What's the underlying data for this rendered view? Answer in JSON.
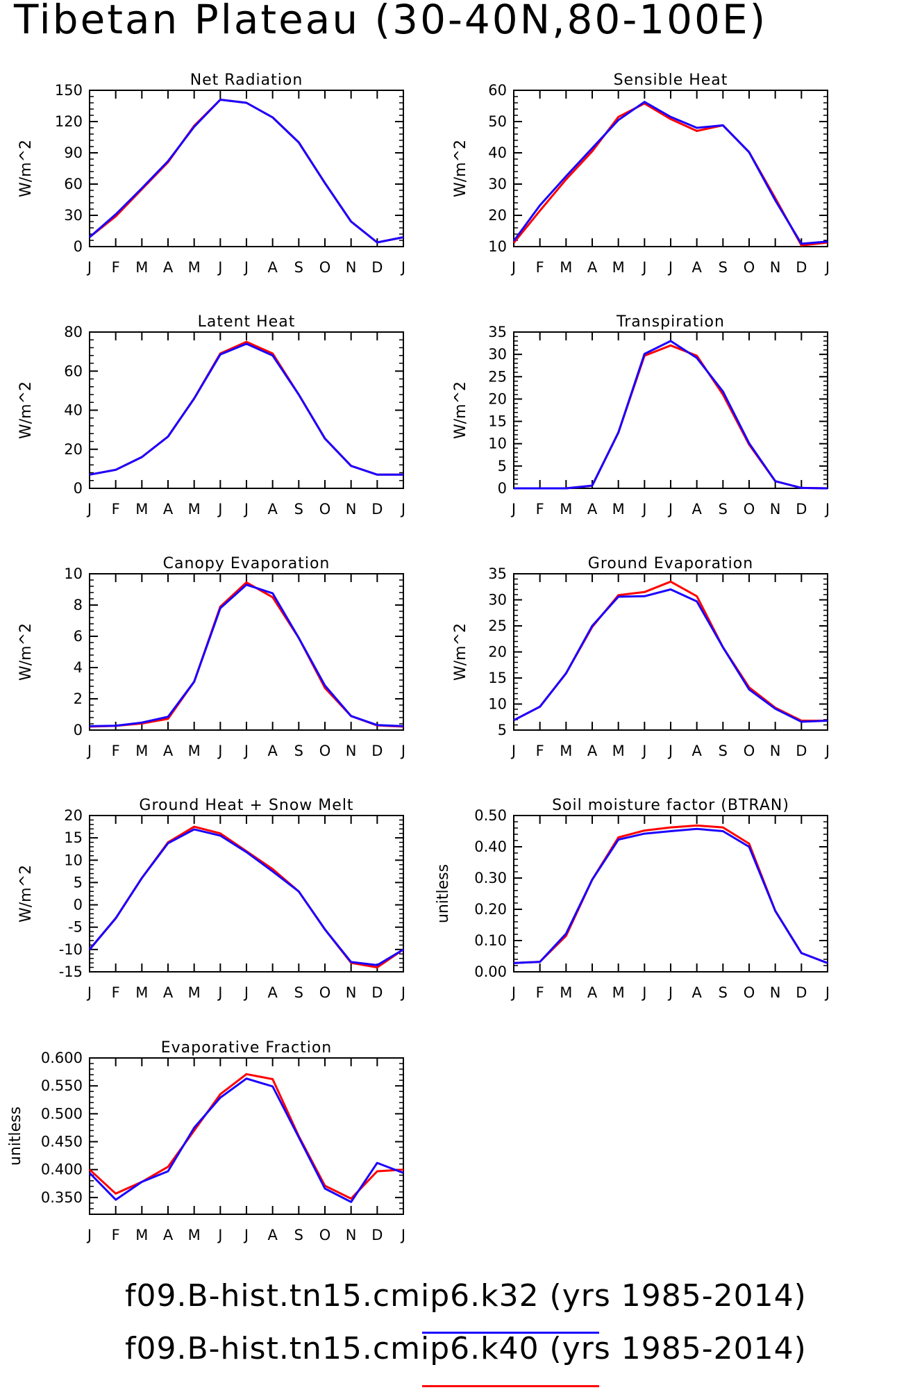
{
  "page_title": "Tibetan Plateau (30-40N,80-100E)",
  "colors": {
    "k32": "#1a00ff",
    "k40": "#ff0000",
    "axis": "#000000"
  },
  "legend": [
    {
      "text": "f09.B-hist.tn15.cmip6.k32 (yrs 1985-2014)",
      "color": "#1a00ff"
    },
    {
      "text": "f09.B-hist.tn15.cmip6.k40 (yrs 1985-2014)",
      "color": "#ff0000"
    }
  ],
  "chart_data": [
    {
      "type": "line",
      "title": "Net Radiation",
      "ylabel": "W/m^2",
      "ylim": [
        0,
        150
      ],
      "yticks": [
        0,
        30,
        60,
        90,
        120,
        150
      ],
      "ytick_labels": [
        "0",
        "30",
        "60",
        "90",
        "120",
        "150"
      ],
      "x": [
        "J",
        "F",
        "M",
        "A",
        "M",
        "J",
        "J",
        "A",
        "S",
        "O",
        "N",
        "D",
        "J"
      ],
      "series": [
        {
          "name": "f09.B-hist.tn15.cmip6.k40",
          "color": "#ff0000",
          "values": [
            9,
            29,
            55,
            81,
            116,
            141,
            138,
            124,
            100,
            61,
            24,
            4,
            9
          ]
        },
        {
          "name": "f09.B-hist.tn15.cmip6.k32",
          "color": "#1a00ff",
          "values": [
            9,
            31,
            56,
            82,
            115,
            141,
            138,
            124,
            100,
            61,
            24,
            4,
            9
          ]
        }
      ]
    },
    {
      "type": "line",
      "title": "Sensible Heat",
      "ylabel": "W/m^2",
      "ylim": [
        10,
        60
      ],
      "yticks": [
        10,
        20,
        30,
        40,
        50,
        60
      ],
      "ytick_labels": [
        "10",
        "20",
        "30",
        "40",
        "50",
        "60"
      ],
      "x": [
        "J",
        "F",
        "M",
        "A",
        "M",
        "J",
        "J",
        "A",
        "S",
        "O",
        "N",
        "D",
        "J"
      ],
      "series": [
        {
          "name": "f09.B-hist.tn15.cmip6.k40",
          "color": "#ff0000",
          "values": [
            11.2,
            21.5,
            31.5,
            40.5,
            51.5,
            55.8,
            50.8,
            47,
            48.8,
            40.2,
            25.5,
            10.4,
            11.3
          ]
        },
        {
          "name": "f09.B-hist.tn15.cmip6.k32",
          "color": "#1a00ff",
          "values": [
            11.8,
            23.2,
            32.5,
            41.5,
            50.5,
            56.3,
            51.5,
            48,
            48.8,
            40.2,
            24.8,
            10.9,
            11.6
          ]
        }
      ]
    },
    {
      "type": "line",
      "title": "Latent Heat",
      "ylabel": "W/m^2",
      "ylim": [
        0,
        80
      ],
      "yticks": [
        0,
        20,
        40,
        60,
        80
      ],
      "ytick_labels": [
        "0",
        "20",
        "40",
        "60",
        "80"
      ],
      "x": [
        "J",
        "F",
        "M",
        "A",
        "M",
        "J",
        "J",
        "A",
        "S",
        "O",
        "N",
        "D",
        "J"
      ],
      "series": [
        {
          "name": "f09.B-hist.tn15.cmip6.k40",
          "color": "#ff0000",
          "values": [
            7,
            9.5,
            16,
            26.5,
            46,
            69,
            75,
            69,
            48,
            25.5,
            11.5,
            7,
            7
          ]
        },
        {
          "name": "f09.B-hist.tn15.cmip6.k32",
          "color": "#1a00ff",
          "values": [
            7,
            9.5,
            16,
            26.5,
            46,
            68.5,
            74,
            68,
            48,
            25.5,
            11.5,
            7,
            7
          ]
        }
      ]
    },
    {
      "type": "line",
      "title": "Transpiration",
      "ylabel": "W/m^2",
      "ylim": [
        0,
        35
      ],
      "yticks": [
        0,
        5,
        10,
        15,
        20,
        25,
        30,
        35
      ],
      "ytick_labels": [
        "0",
        "5",
        "10",
        "15",
        "20",
        "25",
        "30",
        "35"
      ],
      "x": [
        "J",
        "F",
        "M",
        "A",
        "M",
        "J",
        "J",
        "A",
        "S",
        "O",
        "N",
        "D",
        "J"
      ],
      "series": [
        {
          "name": "f09.B-hist.tn15.cmip6.k40",
          "color": "#ff0000",
          "values": [
            0,
            0,
            0,
            0.6,
            12.5,
            29.7,
            32,
            29.7,
            21,
            9.8,
            1.6,
            0.1,
            0
          ]
        },
        {
          "name": "f09.B-hist.tn15.cmip6.k32",
          "color": "#1a00ff",
          "values": [
            0,
            0,
            0,
            0.6,
            12.5,
            30.1,
            33,
            29.2,
            21.7,
            10.1,
            1.6,
            0.1,
            0
          ]
        }
      ]
    },
    {
      "type": "line",
      "title": "Canopy Evaporation",
      "ylabel": "W/m^2",
      "ylim": [
        0,
        10
      ],
      "yticks": [
        0,
        2,
        4,
        6,
        8,
        10
      ],
      "ytick_labels": [
        "0",
        "2",
        "4",
        "6",
        "8",
        "10"
      ],
      "x": [
        "J",
        "F",
        "M",
        "A",
        "M",
        "J",
        "J",
        "A",
        "S",
        "O",
        "N",
        "D",
        "J"
      ],
      "series": [
        {
          "name": "f09.B-hist.tn15.cmip6.k40",
          "color": "#ff0000",
          "values": [
            0.22,
            0.27,
            0.42,
            0.72,
            3.1,
            7.9,
            9.45,
            8.5,
            5.9,
            2.7,
            0.9,
            0.3,
            0.22
          ]
        },
        {
          "name": "f09.B-hist.tn15.cmip6.k32",
          "color": "#1a00ff",
          "values": [
            0.25,
            0.28,
            0.48,
            0.85,
            3.1,
            7.8,
            9.3,
            8.75,
            5.9,
            2.85,
            0.9,
            0.32,
            0.25
          ]
        }
      ]
    },
    {
      "type": "line",
      "title": "Ground Evaporation",
      "ylabel": "W/m^2",
      "ylim": [
        5,
        35
      ],
      "yticks": [
        5,
        10,
        15,
        20,
        25,
        30,
        35
      ],
      "ytick_labels": [
        "5",
        "10",
        "15",
        "20",
        "25",
        "30",
        "35"
      ],
      "x": [
        "J",
        "F",
        "M",
        "A",
        "M",
        "J",
        "J",
        "A",
        "S",
        "O",
        "N",
        "D",
        "J"
      ],
      "series": [
        {
          "name": "f09.B-hist.tn15.cmip6.k40",
          "color": "#ff0000",
          "values": [
            6.9,
            9.5,
            15.9,
            24.8,
            30.9,
            31.5,
            33.5,
            30.7,
            20.9,
            13.2,
            9.3,
            6.8,
            6.8
          ]
        },
        {
          "name": "f09.B-hist.tn15.cmip6.k32",
          "color": "#1a00ff",
          "values": [
            6.9,
            9.5,
            15.9,
            25,
            30.6,
            30.7,
            32,
            29.7,
            20.9,
            12.8,
            9.1,
            6.6,
            6.8
          ]
        }
      ]
    },
    {
      "type": "line",
      "title": "Ground Heat + Snow Melt",
      "ylabel": "W/m^2",
      "ylim": [
        -15,
        20
      ],
      "yticks": [
        -15,
        -10,
        -5,
        0,
        5,
        10,
        15,
        20
      ],
      "ytick_labels": [
        "-15",
        "-10",
        "-5",
        "0",
        "5",
        "10",
        "15",
        "20"
      ],
      "x": [
        "J",
        "F",
        "M",
        "A",
        "M",
        "J",
        "J",
        "A",
        "S",
        "O",
        "N",
        "D",
        "J"
      ],
      "series": [
        {
          "name": "f09.B-hist.tn15.cmip6.k40",
          "color": "#ff0000",
          "values": [
            -10,
            -3,
            6,
            14,
            17.5,
            16,
            12,
            8,
            3,
            -5.5,
            -13,
            -14,
            -10
          ]
        },
        {
          "name": "f09.B-hist.tn15.cmip6.k32",
          "color": "#1a00ff",
          "values": [
            -10,
            -3,
            6,
            13.8,
            16.9,
            15.5,
            11.8,
            7.5,
            3,
            -5.5,
            -12.8,
            -13.5,
            -10
          ]
        }
      ]
    },
    {
      "type": "line",
      "title": "Soil moisture factor (BTRAN)",
      "ylabel": "unitless",
      "ylim": [
        0,
        0.5
      ],
      "yticks": [
        0,
        0.1,
        0.2,
        0.3,
        0.4,
        0.5
      ],
      "ytick_labels": [
        "0.00",
        "0.10",
        "0.20",
        "0.30",
        "0.40",
        "0.50"
      ],
      "x": [
        "J",
        "F",
        "M",
        "A",
        "M",
        "J",
        "J",
        "A",
        "S",
        "O",
        "N",
        "D",
        "J"
      ],
      "series": [
        {
          "name": "f09.B-hist.tn15.cmip6.k40",
          "color": "#ff0000",
          "values": [
            0.028,
            0.032,
            0.115,
            0.295,
            0.43,
            0.452,
            0.462,
            0.468,
            0.462,
            0.41,
            0.195,
            0.06,
            0.028
          ]
        },
        {
          "name": "f09.B-hist.tn15.cmip6.k32",
          "color": "#1a00ff",
          "values": [
            0.028,
            0.032,
            0.122,
            0.295,
            0.423,
            0.442,
            0.45,
            0.457,
            0.45,
            0.4,
            0.195,
            0.06,
            0.028
          ]
        }
      ]
    },
    {
      "type": "line",
      "title": "Evaporative Fraction",
      "ylabel": "unitless",
      "ylim": [
        0.32,
        0.6
      ],
      "yticks": [
        0.35,
        0.4,
        0.45,
        0.5,
        0.55,
        0.6
      ],
      "ytick_labels": [
        "0.350",
        "0.400",
        "0.450",
        "0.500",
        "0.550",
        "0.600"
      ],
      "x": [
        "J",
        "F",
        "M",
        "A",
        "M",
        "J",
        "J",
        "A",
        "S",
        "O",
        "N",
        "D",
        "J"
      ],
      "series": [
        {
          "name": "f09.B-hist.tn15.cmip6.k40",
          "color": "#ff0000",
          "values": [
            0.4,
            0.357,
            0.378,
            0.405,
            0.47,
            0.535,
            0.571,
            0.562,
            0.46,
            0.371,
            0.348,
            0.397,
            0.4
          ]
        },
        {
          "name": "f09.B-hist.tn15.cmip6.k32",
          "color": "#1a00ff",
          "values": [
            0.394,
            0.346,
            0.378,
            0.397,
            0.475,
            0.529,
            0.563,
            0.549,
            0.458,
            0.366,
            0.342,
            0.412,
            0.394
          ]
        }
      ]
    }
  ]
}
